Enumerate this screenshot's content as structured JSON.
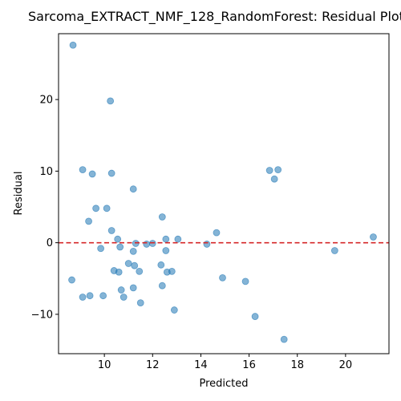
{
  "chart_data": {
    "type": "scatter",
    "title": "Sarcoma_EXTRACT_NMF_128_RandomForest: Residual Plot",
    "xlabel": "Predicted",
    "ylabel": "Residual",
    "xlim": [
      8.1,
      21.8
    ],
    "ylim": [
      -15.5,
      29.2
    ],
    "xticks": [
      10,
      12,
      14,
      16,
      18,
      20
    ],
    "xtick_labels": [
      "10",
      "12",
      "14",
      "16",
      "18",
      "20"
    ],
    "yticks": [
      -10,
      0,
      10,
      20
    ],
    "ytick_labels": [
      "−10",
      "0",
      "10",
      "20"
    ],
    "grid": false,
    "point_color": "#1f77b4",
    "point_alpha": 0.55,
    "reference_line": {
      "y": 0,
      "color": "#d62728",
      "style": "dashed"
    },
    "points": [
      {
        "x": 8.7,
        "y": 27.6
      },
      {
        "x": 10.25,
        "y": 19.8
      },
      {
        "x": 9.1,
        "y": 10.2
      },
      {
        "x": 9.5,
        "y": 9.6
      },
      {
        "x": 10.3,
        "y": 9.7
      },
      {
        "x": 11.2,
        "y": 7.5
      },
      {
        "x": 9.65,
        "y": 4.8
      },
      {
        "x": 10.1,
        "y": 4.8
      },
      {
        "x": 12.4,
        "y": 3.6
      },
      {
        "x": 9.35,
        "y": 3.0
      },
      {
        "x": 10.3,
        "y": 1.7
      },
      {
        "x": 14.65,
        "y": 1.4
      },
      {
        "x": 16.85,
        "y": 10.1
      },
      {
        "x": 17.2,
        "y": 10.2
      },
      {
        "x": 17.05,
        "y": 8.9
      },
      {
        "x": 21.15,
        "y": 0.8
      },
      {
        "x": 10.55,
        "y": 0.5
      },
      {
        "x": 12.55,
        "y": 0.5
      },
      {
        "x": 13.05,
        "y": 0.5
      },
      {
        "x": 11.3,
        "y": -0.1
      },
      {
        "x": 11.75,
        "y": -0.2
      },
      {
        "x": 12.0,
        "y": -0.1
      },
      {
        "x": 14.25,
        "y": -0.2
      },
      {
        "x": 9.85,
        "y": -0.8
      },
      {
        "x": 10.65,
        "y": -0.6
      },
      {
        "x": 11.2,
        "y": -1.2
      },
      {
        "x": 12.55,
        "y": -1.1
      },
      {
        "x": 19.55,
        "y": -1.1
      },
      {
        "x": 11.0,
        "y": -2.9
      },
      {
        "x": 11.25,
        "y": -3.2
      },
      {
        "x": 12.35,
        "y": -3.1
      },
      {
        "x": 10.4,
        "y": -3.9
      },
      {
        "x": 10.6,
        "y": -4.1
      },
      {
        "x": 11.45,
        "y": -4.0
      },
      {
        "x": 12.6,
        "y": -4.1
      },
      {
        "x": 12.8,
        "y": -4.0
      },
      {
        "x": 14.9,
        "y": -4.9
      },
      {
        "x": 15.85,
        "y": -5.4
      },
      {
        "x": 8.65,
        "y": -5.2
      },
      {
        "x": 12.4,
        "y": -6.0
      },
      {
        "x": 11.2,
        "y": -6.3
      },
      {
        "x": 10.7,
        "y": -6.6
      },
      {
        "x": 9.1,
        "y": -7.6
      },
      {
        "x": 9.4,
        "y": -7.4
      },
      {
        "x": 9.95,
        "y": -7.4
      },
      {
        "x": 10.8,
        "y": -7.6
      },
      {
        "x": 11.5,
        "y": -8.4
      },
      {
        "x": 12.9,
        "y": -9.4
      },
      {
        "x": 16.25,
        "y": -10.3
      },
      {
        "x": 17.45,
        "y": -13.5
      }
    ]
  }
}
